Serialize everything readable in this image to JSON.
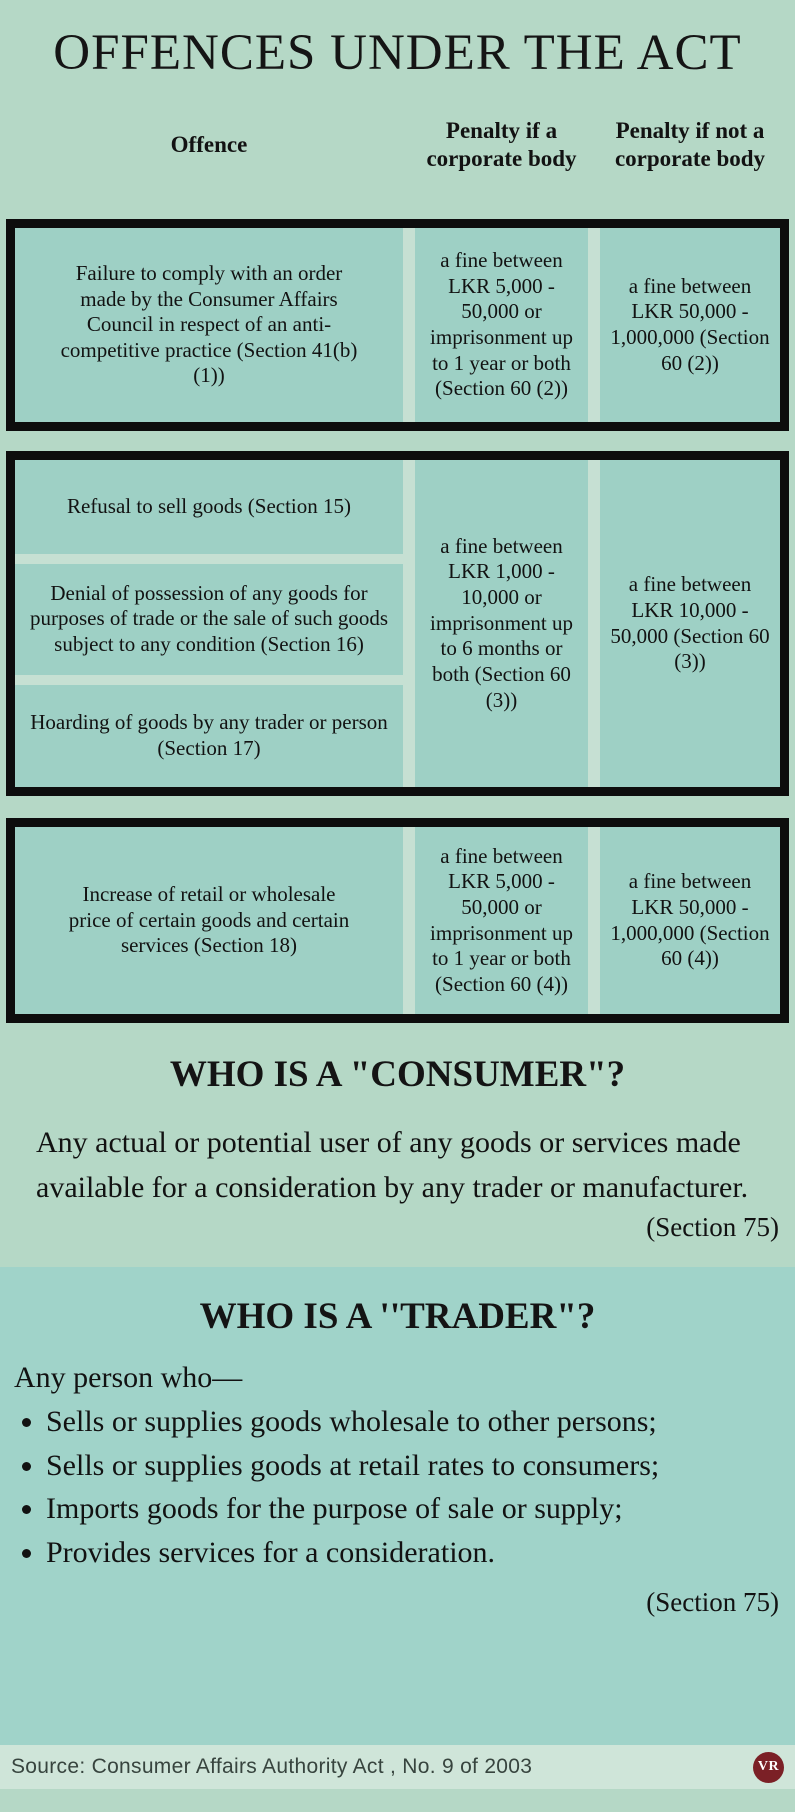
{
  "title": "OFFENCES UNDER THE ACT",
  "table": {
    "headers": [
      "Offence",
      "Penalty if a corporate body",
      "Penalty if not a corporate body"
    ],
    "groups": [
      {
        "offences": [
          "Failure to comply with an order made by the Consumer Affairs Council in respect of an anti-competitive practice (Section 41(b)(1))"
        ],
        "penalty_corporate": "a fine between LKR 5,000 - 50,000 or imprisonment up to 1 year or both (Section 60 (2))",
        "penalty_not_corporate": "a fine between LKR 50,000 - 1,000,000 (Section 60 (2))"
      },
      {
        "offences": [
          "Refusal to sell goods (Section 15)",
          "Denial of possession of any goods for purposes of trade or the sale of such goods subject to any condition (Section 16)",
          "Hoarding of goods by any trader or person (Section 17)"
        ],
        "penalty_corporate": "a fine between LKR 1,000 - 10,000 or imprisonment up to 6 months or both (Section 60 (3))",
        "penalty_not_corporate": "a fine between LKR 10,000 - 50,000 (Section 60 (3))"
      },
      {
        "offences": [
          "Increase of retail or wholesale price of certain goods and certain services (Section 18)"
        ],
        "penalty_corporate": "a fine between LKR 5,000 - 50,000 or imprisonment up to 1 year or both (Section 60 (4))",
        "penalty_not_corporate": "a fine between LKR 50,000 - 1,000,000 (Section 60 (4))"
      }
    ]
  },
  "consumer": {
    "heading": "WHO IS A \"CONSUMER\"?",
    "definition": "Any actual or potential user of any goods or services made available for a consideration by any trader or manufacturer.",
    "section_ref": "(Section 75)"
  },
  "trader": {
    "heading": "WHO IS A ''TRADER\"?",
    "intro": "Any person who—",
    "bullets": [
      "Sells or supplies goods wholesale to other persons;",
      "Sells or supplies goods at retail rates to consumers;",
      "Imports goods for the purpose of sale or supply;",
      "Provides services for a consideration."
    ],
    "section_ref": "(Section 75)"
  },
  "footer": {
    "source": "Source: Consumer Affairs Authority Act , No. 9 of 2003",
    "logo_text": "VR"
  },
  "colors": {
    "page_background": "#b5d8c6",
    "table_cell_background": "#9ed0c5",
    "table_gap_background": "#c6e0d3",
    "table_border": "#0d0d0d",
    "trader_section_background": "#a0d3c9",
    "footer_background": "#cfe5d9",
    "logo_background": "#7b2026"
  }
}
